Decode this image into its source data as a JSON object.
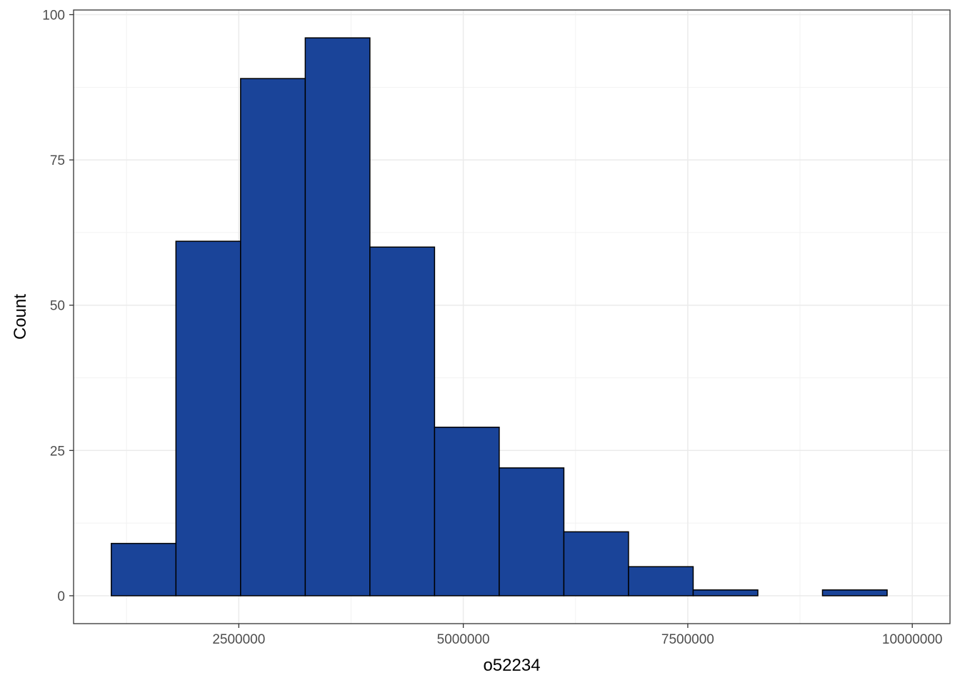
{
  "chart_data": {
    "type": "histogram",
    "title": "",
    "xlabel": "o52234",
    "ylabel": "Count",
    "xlim": [
      660000,
      10420000
    ],
    "ylim": [
      -4.8,
      100.8
    ],
    "x_ticks": [
      2500000,
      5000000,
      7500000,
      10000000
    ],
    "x_tick_labels": [
      "2500000",
      "5000000",
      "7500000",
      "10000000"
    ],
    "x_minor_ticks": [
      1250000,
      3750000,
      6250000,
      8750000
    ],
    "y_ticks": [
      0,
      25,
      50,
      75,
      100
    ],
    "y_tick_labels": [
      "0",
      "25",
      "50",
      "75",
      "100"
    ],
    "y_minor_ticks": [
      12.5,
      37.5,
      62.5,
      87.5
    ],
    "bin_edges": [
      1080000,
      1800000,
      2520000,
      3240000,
      3960000,
      4680000,
      5400000,
      6120000,
      6840000,
      7560000,
      8280000,
      9000000,
      9720000
    ],
    "counts": [
      9,
      61,
      89,
      96,
      60,
      29,
      22,
      11,
      5,
      1,
      0,
      1
    ],
    "grid": true,
    "legend": "none",
    "colors": {
      "bar_fill": "#1a4499",
      "bar_stroke": "#000000",
      "grid_major": "#ebebeb",
      "grid_minor": "#f2f2f2",
      "panel_border": "#333333"
    }
  }
}
